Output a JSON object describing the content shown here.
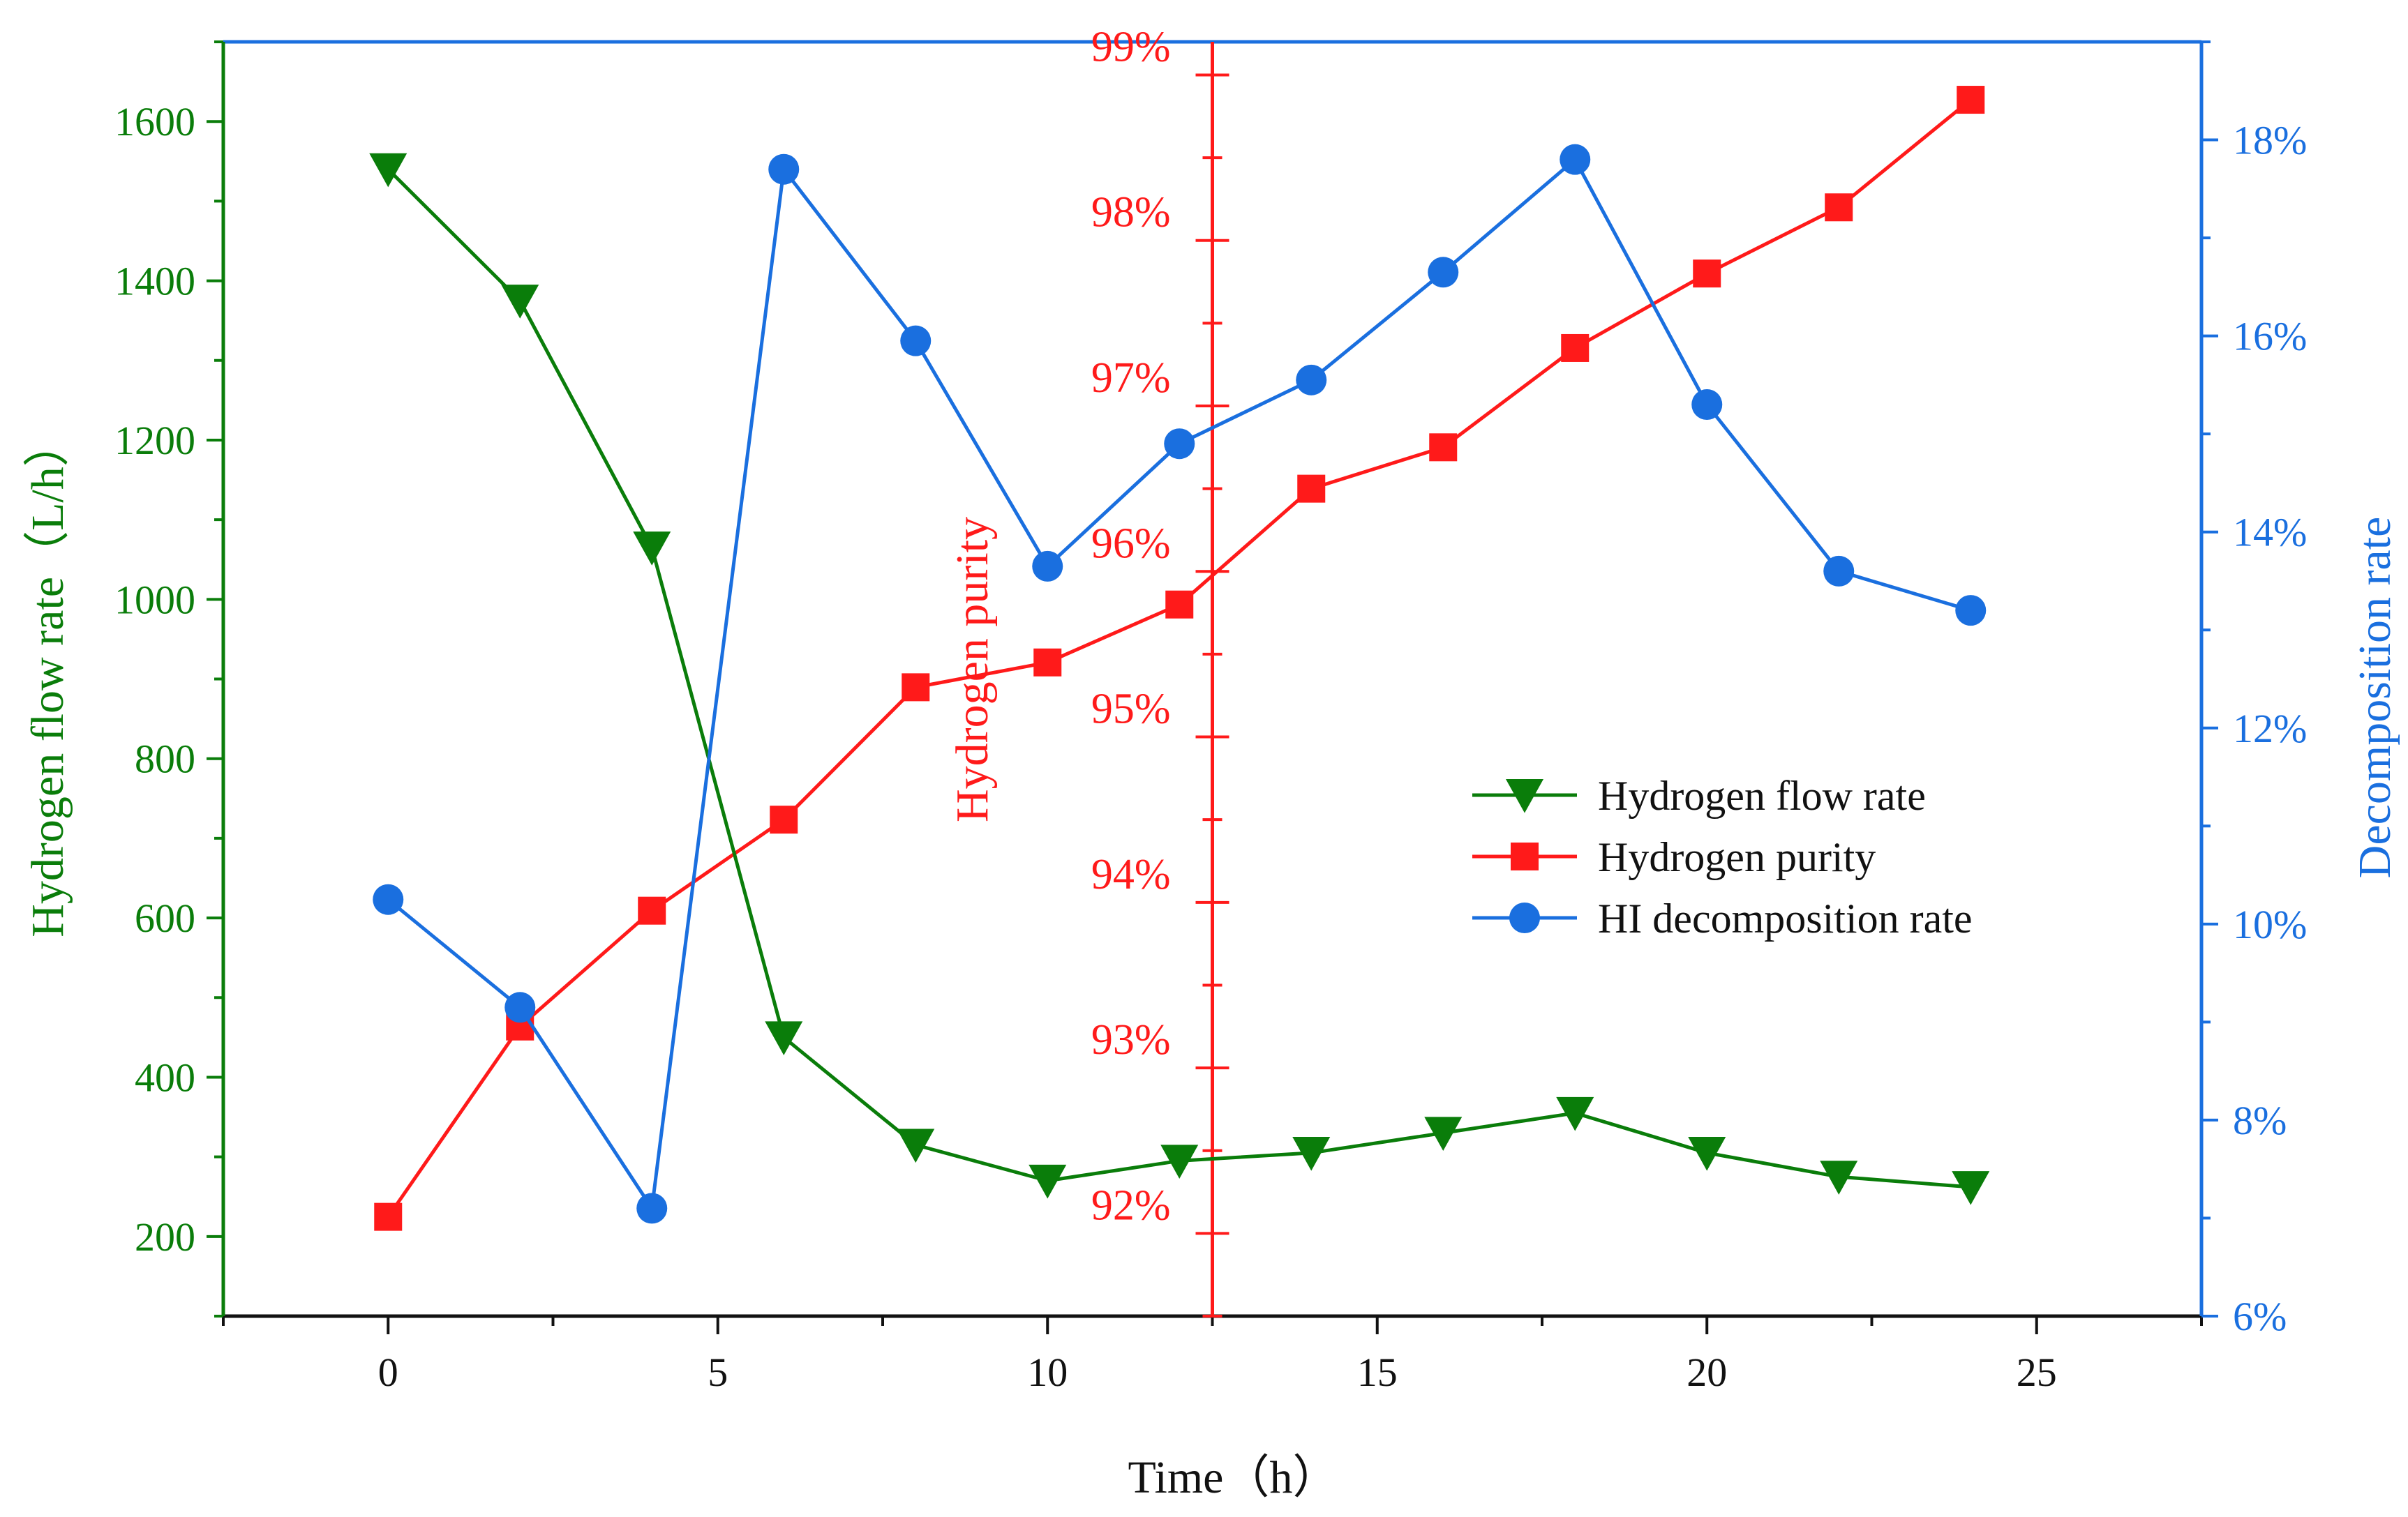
{
  "chart_data": {
    "type": "line",
    "x": [
      0,
      2,
      4,
      6,
      8,
      10,
      12,
      14,
      16,
      18,
      20,
      22,
      24
    ],
    "xlabel": "Time（h）",
    "xlim": [
      -2.5,
      27.5
    ],
    "xticks": [
      0,
      5,
      10,
      15,
      20,
      25
    ],
    "x_tick_labels": [
      "0",
      "5",
      "10",
      "15",
      "20",
      "25"
    ],
    "axes": {
      "left": {
        "label": "Hydrogen flow rate（L/h）",
        "ylim": [
          100,
          1700
        ],
        "ticks": [
          200,
          400,
          600,
          800,
          1000,
          1200,
          1400,
          1600
        ],
        "tick_labels": [
          "200",
          "400",
          "600",
          "800",
          "1000",
          "1200",
          "1400",
          "1600"
        ],
        "color": "#0a7d0a"
      },
      "middle": {
        "label": "Hydrogen purity",
        "ylim": [
          91.5,
          99.2
        ],
        "ticks": [
          92,
          93,
          94,
          95,
          96,
          97,
          98,
          99
        ],
        "tick_labels": [
          "92%",
          "93%",
          "94%",
          "95%",
          "96%",
          "97%",
          "98%",
          "99%"
        ],
        "x_position": 12.5,
        "color": "#ff1a1a"
      },
      "right": {
        "label": "Decomposition rate",
        "ylim": [
          6,
          19
        ],
        "ticks": [
          6,
          8,
          10,
          12,
          14,
          16,
          18
        ],
        "tick_labels": [
          "6%",
          "8%",
          "10%",
          "12%",
          "14%",
          "16%",
          "18%"
        ],
        "color": "#1a6fdf"
      }
    },
    "series": [
      {
        "name": "Hydrogen flow rate",
        "axis": "left",
        "marker": "triangle-down",
        "color": "#0a7d0a",
        "values": [
          1540,
          1375,
          1065,
          450,
          315,
          270,
          295,
          305,
          330,
          355,
          305,
          275,
          262
        ]
      },
      {
        "name": "Hydrogen purity",
        "axis": "middle",
        "marker": "square",
        "color": "#ff1a1a",
        "values": [
          92.1,
          93.25,
          93.95,
          94.5,
          95.3,
          95.45,
          95.8,
          96.5,
          96.75,
          97.35,
          97.8,
          98.2,
          98.85
        ]
      },
      {
        "name": "HI decomposition rate",
        "axis": "right",
        "marker": "circle",
        "color": "#1a6fdf",
        "values": [
          10.25,
          9.15,
          7.1,
          17.7,
          15.95,
          13.65,
          14.9,
          15.55,
          16.65,
          17.8,
          15.3,
          13.6,
          13.2
        ]
      }
    ],
    "legend_position": "center-right"
  }
}
